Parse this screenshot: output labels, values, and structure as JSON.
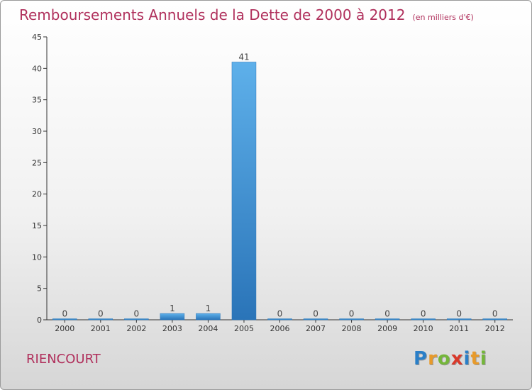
{
  "title": "Remboursements Annuels de la Dette de 2000 à 2012",
  "unit_label": "(en milliers d'€)",
  "town": "RIENCOURT",
  "brand": {
    "letters": [
      {
        "ch": "P",
        "color": "#2a7fc8"
      },
      {
        "ch": "r",
        "color": "#e89a2a"
      },
      {
        "ch": "o",
        "color": "#74b63a"
      },
      {
        "ch": "x",
        "color": "#d9392b"
      },
      {
        "ch": "i",
        "color": "#2a7fc8"
      },
      {
        "ch": "t",
        "color": "#e89a2a"
      },
      {
        "ch": "i",
        "color": "#74b63a"
      }
    ]
  },
  "chart_data": {
    "type": "bar",
    "title": "Remboursements Annuels de la Dette de 2000 à 2012",
    "xlabel": "",
    "ylabel": "",
    "categories": [
      "2000",
      "2001",
      "2002",
      "2003",
      "2004",
      "2005",
      "2006",
      "2007",
      "2008",
      "2009",
      "2010",
      "2011",
      "2012"
    ],
    "values": [
      0,
      0,
      0,
      1,
      1,
      41,
      0,
      0,
      0,
      0,
      0,
      0,
      0
    ],
    "ylim": [
      0,
      45
    ],
    "yticks": [
      0,
      5,
      10,
      15,
      20,
      25,
      30,
      35,
      40,
      45
    ],
    "grid": false,
    "bar_color": "#3a8fd6"
  }
}
